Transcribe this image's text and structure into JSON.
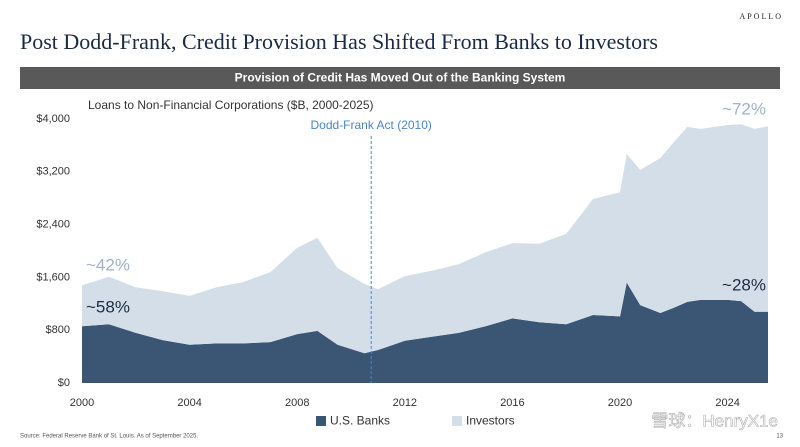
{
  "brand": "APOLLO",
  "title": "Post Dodd-Frank, Credit Provision Has Shifted From Banks to Investors",
  "banner": "Provision of Credit Has Moved Out of the Banking System",
  "source": "Source: Federal Reserve Bank of St. Louis. As of September 2025.",
  "page_number": "13",
  "watermark": "雪球：HenryX1e",
  "chart_data": {
    "type": "stacked_area",
    "title": "Loans to Non-Financial Corporations ($B, 2000-2025)",
    "x": [
      2000,
      2001,
      2002,
      2003,
      2004,
      2005,
      2006,
      2007,
      2008,
      2008.75,
      2009.5,
      2010.5,
      2011,
      2012,
      2013,
      2014,
      2015,
      2016,
      2017,
      2018,
      2019,
      2020,
      2020.25,
      2020.75,
      2021.5,
      2022,
      2022.5,
      2023,
      2024,
      2024.5,
      2025,
      2025.5
    ],
    "series": [
      {
        "name": "U.S. Banks",
        "color": "#3b5675",
        "values": [
          860,
          890,
          760,
          650,
          580,
          600,
          600,
          620,
          740,
          790,
          580,
          450,
          500,
          640,
          700,
          760,
          860,
          980,
          920,
          890,
          1030,
          1010,
          1520,
          1180,
          1060,
          1140,
          1230,
          1260,
          1260,
          1240,
          1080,
          1080
        ]
      },
      {
        "name": "Investors",
        "color": "#d4dee9",
        "values": [
          620,
          720,
          690,
          740,
          740,
          850,
          930,
          1060,
          1310,
          1410,
          1160,
          1050,
          920,
          980,
          1000,
          1040,
          1120,
          1140,
          1190,
          1370,
          1760,
          1880,
          1950,
          2050,
          2350,
          2510,
          2650,
          2590,
          2650,
          2680,
          2770,
          2810
        ]
      }
    ],
    "xlim": [
      2000,
      2025.5
    ],
    "xticks": [
      2000,
      2004,
      2008,
      2012,
      2016,
      2020,
      2024
    ],
    "ylim": [
      0,
      4000
    ],
    "yticks": [
      {
        "value": 0,
        "label": "$0"
      },
      {
        "value": 800,
        "label": "$800"
      },
      {
        "value": 1600,
        "label": "$1,600"
      },
      {
        "value": 2400,
        "label": "$2,400"
      },
      {
        "value": 3200,
        "label": "$3,200"
      },
      {
        "value": 4000,
        "label": "$4,000"
      }
    ],
    "grid": false,
    "event": {
      "label": "Dodd-Frank Act (2010)",
      "x": 2010.75
    },
    "share_labels": {
      "investors_2000": "~42%",
      "banks_2000": "~58%",
      "investors_2025": "~72%",
      "banks_2025": "~28%"
    }
  }
}
